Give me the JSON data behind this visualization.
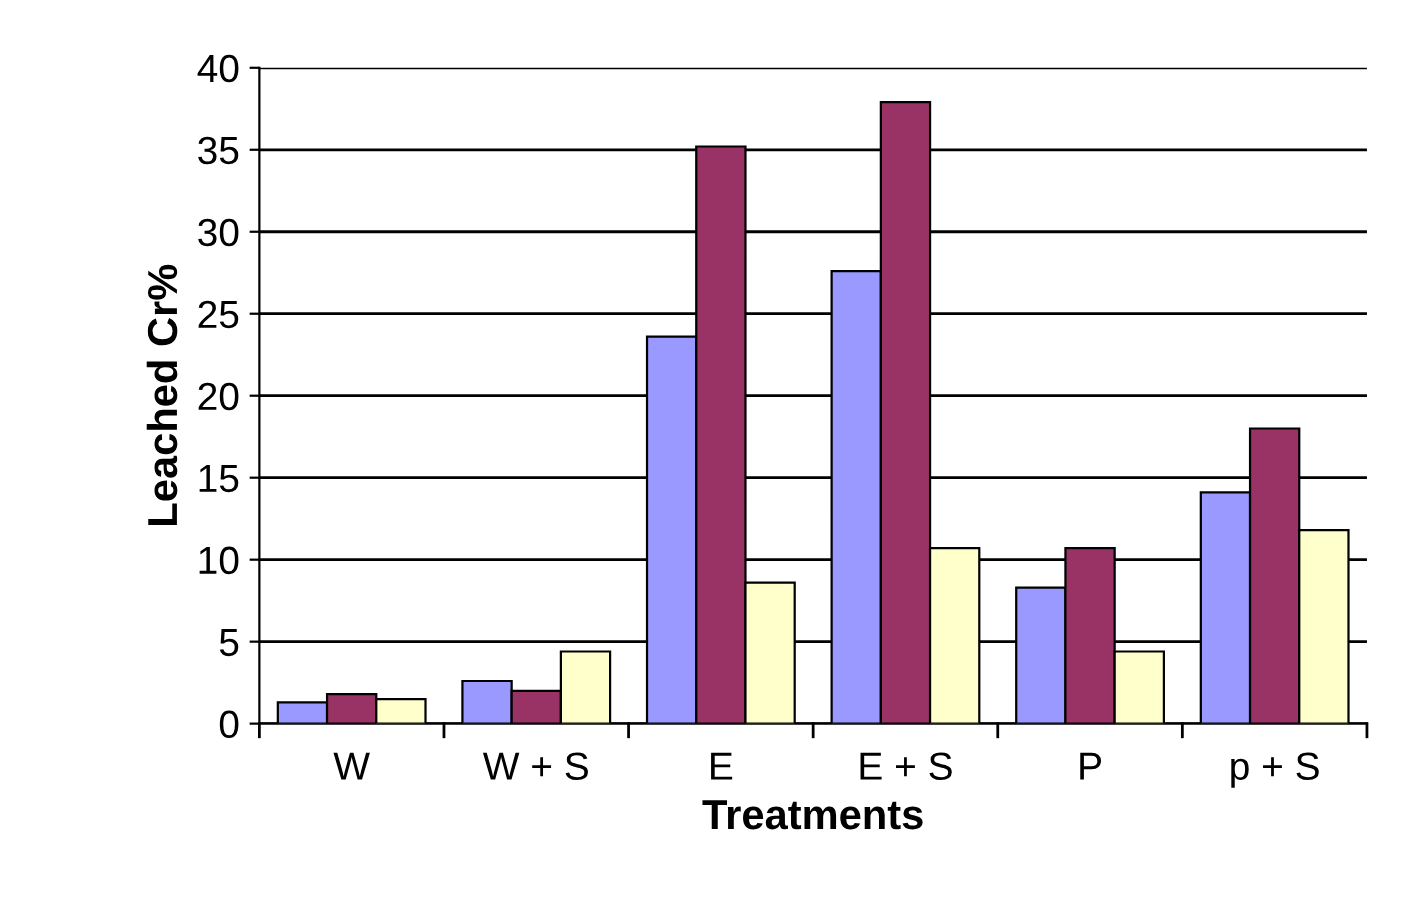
{
  "chart_data": {
    "type": "bar",
    "xlabel": "Treatments",
    "ylabel": "Leached Cr%",
    "categories": [
      "W",
      "W + S",
      "E",
      "E + S",
      "P",
      "p + S"
    ],
    "series": [
      {
        "color": "#9999ff",
        "values": [
          1.3,
          2.6,
          23.6,
          27.6,
          8.3,
          14.1
        ]
      },
      {
        "color": "#993366",
        "values": [
          1.8,
          2.0,
          35.2,
          37.9,
          10.7,
          18.0
        ]
      },
      {
        "color": "#ffffcc",
        "values": [
          1.5,
          4.4,
          8.6,
          10.7,
          4.4,
          11.8
        ]
      }
    ],
    "ylim": [
      0,
      40
    ],
    "yticks": [
      0,
      5,
      10,
      15,
      20,
      25,
      30,
      35,
      40
    ],
    "grid": "y",
    "legend": false
  }
}
